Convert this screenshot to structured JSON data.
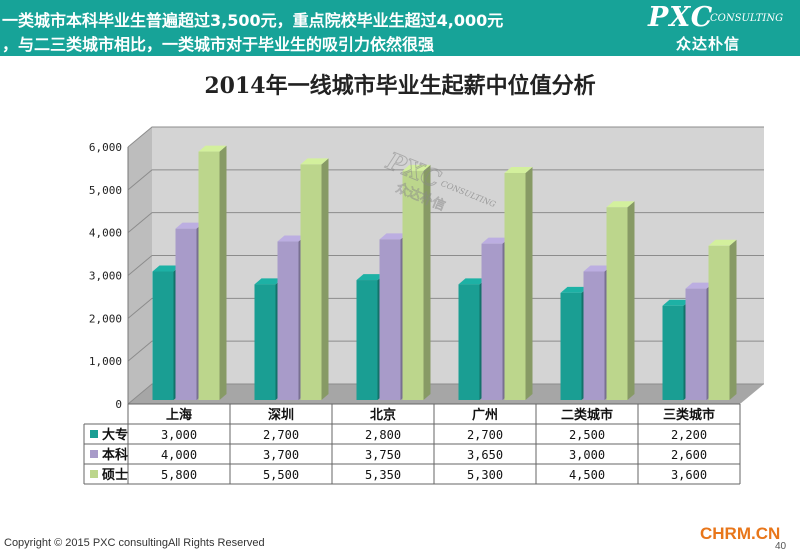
{
  "header": {
    "line1": "一类城市本科毕业生普遍超过3,500元，重点院校毕业生超过4,000元",
    "line2": "，与二三类城市相比，一类城市对于毕业生的吸引力依然很强",
    "logo_main": "PXC",
    "logo_sub": "CONSULTING",
    "logo_cn": "众达朴信"
  },
  "watermark": {
    "main": "PXC",
    "sub": "CONSULTING",
    "cn": "众达朴信"
  },
  "footer": {
    "copyright": "Copyright © 2015 PXC consultingAll Rights Reserved",
    "site": "CHRM.CN",
    "page": "40"
  },
  "colors": {
    "header_bg": "#17a398",
    "series": [
      "#1a9e93",
      "#a89bc9",
      "#bcd68c"
    ],
    "wall": "#d4d4d4",
    "floor": "#a6a6a6"
  },
  "chart_data": {
    "type": "bar",
    "title": "2014年一线城市毕业生起薪中位值分析",
    "categories": [
      "上海",
      "深圳",
      "北京",
      "广州",
      "二类城市",
      "三类城市"
    ],
    "series": [
      {
        "name": "大专",
        "values": [
          3000,
          2700,
          2800,
          2700,
          2500,
          2200
        ],
        "labels": [
          "3,000",
          "2,700",
          "2,800",
          "2,700",
          "2,500",
          "2,200"
        ]
      },
      {
        "name": "本科",
        "values": [
          4000,
          3700,
          3750,
          3650,
          3000,
          2600
        ],
        "labels": [
          "4,000",
          "3,700",
          "3,750",
          "3,650",
          "3,000",
          "2,600"
        ]
      },
      {
        "name": "硕士",
        "values": [
          5800,
          5500,
          5350,
          5300,
          4500,
          3600
        ],
        "labels": [
          "5,800",
          "5,500",
          "5,350",
          "5,300",
          "4,500",
          "3,600"
        ]
      }
    ],
    "yticks": [
      "0",
      "1,000",
      "2,000",
      "3,000",
      "4,000",
      "5,000",
      "6,000"
    ],
    "ylim": [
      0,
      6000
    ],
    "grid": true,
    "data_table": true,
    "three_d": true
  }
}
